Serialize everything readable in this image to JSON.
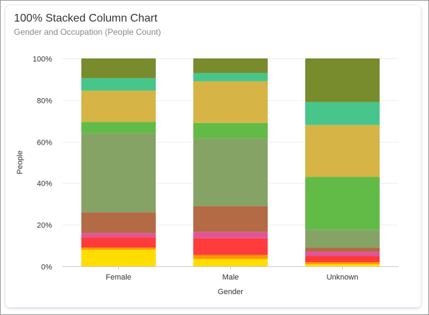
{
  "chart_title": "100% Stacked Column Chart",
  "chart_subtitle": "Gender and Occupation (People Count)",
  "chart_data": {
    "type": "bar",
    "stacked": "percent",
    "title": "100% Stacked Column Chart",
    "subtitle": "Gender and Occupation (People Count)",
    "xlabel": "Gender",
    "ylabel": "People",
    "categories": [
      "Female",
      "Male",
      "Unknown"
    ],
    "y_ticks": [
      "0%",
      "20%",
      "40%",
      "60%",
      "80%",
      "100%"
    ],
    "ylim": [
      0,
      100
    ],
    "grid": true,
    "legend": "none",
    "series": [
      {
        "color": "#FFDD00",
        "values": [
          8,
          3.5,
          1
        ]
      },
      {
        "color": "#FF9900",
        "values": [
          1,
          2,
          1
        ]
      },
      {
        "color": "#FF3B3B",
        "values": [
          5,
          8,
          3
        ]
      },
      {
        "color": "#E0559A",
        "values": [
          2,
          3,
          2
        ]
      },
      {
        "color": "#B36A45",
        "values": [
          10,
          12.5,
          2
        ]
      },
      {
        "color": "#86A366",
        "values": [
          38,
          32.5,
          8.5
        ]
      },
      {
        "color": "#62BB47",
        "values": [
          5.5,
          7.5,
          25.5
        ]
      },
      {
        "color": "#D6B445",
        "values": [
          15,
          20,
          25
        ]
      },
      {
        "color": "#48C58A",
        "values": [
          6,
          4,
          11
        ]
      },
      {
        "color": "#788B2D",
        "values": [
          9.5,
          7,
          21
        ]
      }
    ]
  }
}
